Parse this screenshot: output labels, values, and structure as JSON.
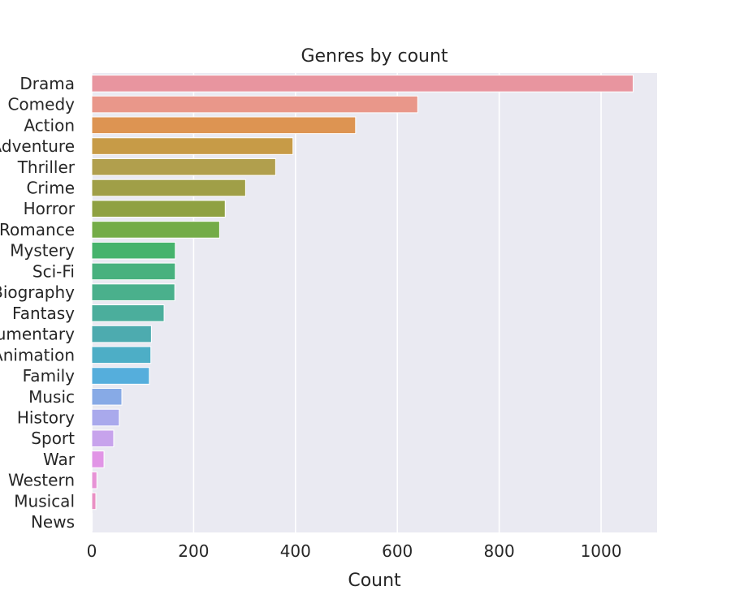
{
  "chart_data": {
    "type": "bar",
    "orientation": "horizontal",
    "title": "Genres by count",
    "xlabel": "Count",
    "ylabel": "",
    "xlim": [
      0,
      1110
    ],
    "xticks": [
      0,
      200,
      400,
      600,
      800,
      1000
    ],
    "grid": true,
    "legend": "none",
    "categories": [
      "Drama",
      "Comedy",
      "Action",
      "Adventure",
      "Thriller",
      "Crime",
      "Horror",
      "Romance",
      "Mystery",
      "Sci-Fi",
      "Biography",
      "Fantasy",
      "Documentary",
      "Animation",
      "Family",
      "Music",
      "History",
      "Sport",
      "War",
      "Western",
      "Musical",
      "News"
    ],
    "values": [
      1063,
      640,
      518,
      395,
      361,
      302,
      262,
      251,
      164,
      164,
      163,
      142,
      117,
      116,
      113,
      59,
      54,
      43,
      24,
      10,
      8,
      1
    ],
    "colors": [
      "#e8959f",
      "#e9978a",
      "#dd9452",
      "#c79b47",
      "#b19f4d",
      "#a09f47",
      "#8fa142",
      "#74ac48",
      "#46b36c",
      "#48b17e",
      "#4ab08c",
      "#4bae9c",
      "#4dabaf",
      "#4daec6",
      "#55aedc",
      "#87aae6",
      "#a9a9ec",
      "#c7a3ec",
      "#e195e6",
      "#e793d6",
      "#e990c4",
      "#ea91b6"
    ],
    "background_color": "#eaeaf2",
    "grid_color": "#ffffff"
  }
}
